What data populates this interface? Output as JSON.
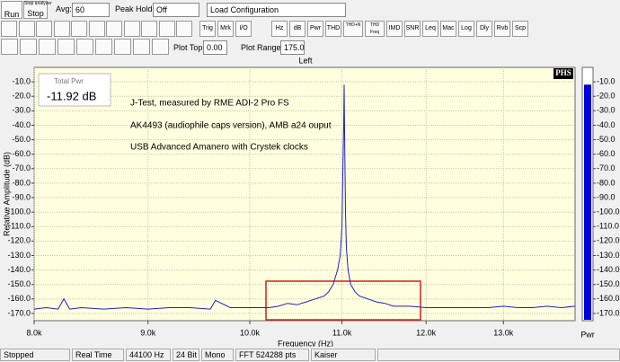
{
  "toolbar": {
    "run": "Run",
    "stop_caption": "Stop analyzer",
    "stop": "Stop",
    "avg_label": "Avg:",
    "avg_value": "60",
    "peak_label": "Peak Hold:",
    "peak_value": "Off",
    "config": "Load Configuration",
    "buttons": [
      "Trig",
      "Mrk",
      "I/O",
      "Hz",
      "dB",
      "Pwr",
      "THD",
      "THD+N",
      "THD Freq",
      "IMD",
      "SNR",
      "Leq",
      "Mac",
      "Log",
      "Dly",
      "Rvb",
      "Scp"
    ],
    "plot_top_label": "Plot Top:",
    "plot_top": "0.00",
    "plot_range_label": "Plot Range:",
    "plot_range": "175.0"
  },
  "total_pwr": {
    "label": "Total Pwr",
    "reading": "-11.92 dB"
  },
  "meter": {
    "label": "Pwr",
    "value": -11.92,
    "color": "#0000e0"
  },
  "chart_data": {
    "type": "line",
    "title": "Left",
    "logo": "PHS",
    "xlabel": "Frequency (Hz)",
    "ylabel": "Relative Amplitude (dB)",
    "annotations": [
      "J-Test, measured by RME ADI-2 Pro FS",
      "AK4493 (audiophile caps version), AMB a24 ouput",
      "USB Advanced Amanero with Crystek clocks"
    ],
    "xscale": "log",
    "xlim": [
      8000,
      14000
    ],
    "ylim": [
      -175,
      0
    ],
    "grid": true,
    "xticks": [
      {
        "value": 8000,
        "label": "8.0k"
      },
      {
        "value": 9000,
        "label": "9.0k"
      },
      {
        "value": 10000,
        "label": "10.0k"
      },
      {
        "value": 11000,
        "label": "11.0k"
      },
      {
        "value": 12000,
        "label": "12.0k"
      },
      {
        "value": 13000,
        "label": "13.0k"
      }
    ],
    "yticks": [
      {
        "value": -10,
        "label": "-10.0"
      },
      {
        "value": -20,
        "label": "-20.0"
      },
      {
        "value": -30,
        "label": "-30.0"
      },
      {
        "value": -40,
        "label": "-40.0"
      },
      {
        "value": -50,
        "label": "-50.0"
      },
      {
        "value": -60,
        "label": "-60.0"
      },
      {
        "value": -70,
        "label": "-70.0"
      },
      {
        "value": -80,
        "label": "-80.0"
      },
      {
        "value": -90,
        "label": "-90.0"
      },
      {
        "value": -100,
        "label": "-100.0"
      },
      {
        "value": -110,
        "label": "-110.0"
      },
      {
        "value": -120,
        "label": "-120.0"
      },
      {
        "value": -130,
        "label": "-130.0"
      },
      {
        "value": -140,
        "label": "-140.0"
      },
      {
        "value": -150,
        "label": "-150.0"
      },
      {
        "value": -160,
        "label": "-160.0"
      },
      {
        "value": -170,
        "label": "-170.0"
      }
    ],
    "x": [
      8000,
      8100,
      8200,
      8250,
      8300,
      8400,
      8600,
      8800,
      9000,
      9200,
      9400,
      9600,
      9650,
      9800,
      10000,
      10200,
      10300,
      10400,
      10500,
      10600,
      10700,
      10800,
      10850,
      10900,
      10950,
      10980,
      11000,
      11010,
      11020,
      11025,
      11030,
      11040,
      11050,
      11070,
      11100,
      11150,
      11200,
      11300,
      11400,
      11500,
      11600,
      11800,
      12000,
      12200,
      12400,
      12600,
      12800,
      13000,
      13200,
      13400,
      13600,
      13800,
      14000
    ],
    "series": [
      {
        "name": "Left",
        "color": "#2020c0",
        "values": [
          -167,
          -166,
          -167,
          -160,
          -167,
          -166,
          -167,
          -166,
          -167,
          -166,
          -166,
          -167,
          -161,
          -166,
          -166,
          -166,
          -165,
          -163,
          -164,
          -162,
          -160,
          -158,
          -155,
          -150,
          -140,
          -130,
          -110,
          -70,
          -40,
          -12,
          -45,
          -100,
          -125,
          -140,
          -150,
          -155,
          -158,
          -160,
          -162,
          -163,
          -165,
          -165,
          -166,
          -166,
          -166,
          -166,
          -166,
          -165,
          -166,
          -166,
          -165,
          -166,
          -165
        ]
      }
    ]
  },
  "status": [
    "Stopped",
    "Real Time",
    "44100 Hz",
    "24 Bit",
    "Mono",
    "FFT 524288 pts",
    "Kaiser"
  ]
}
